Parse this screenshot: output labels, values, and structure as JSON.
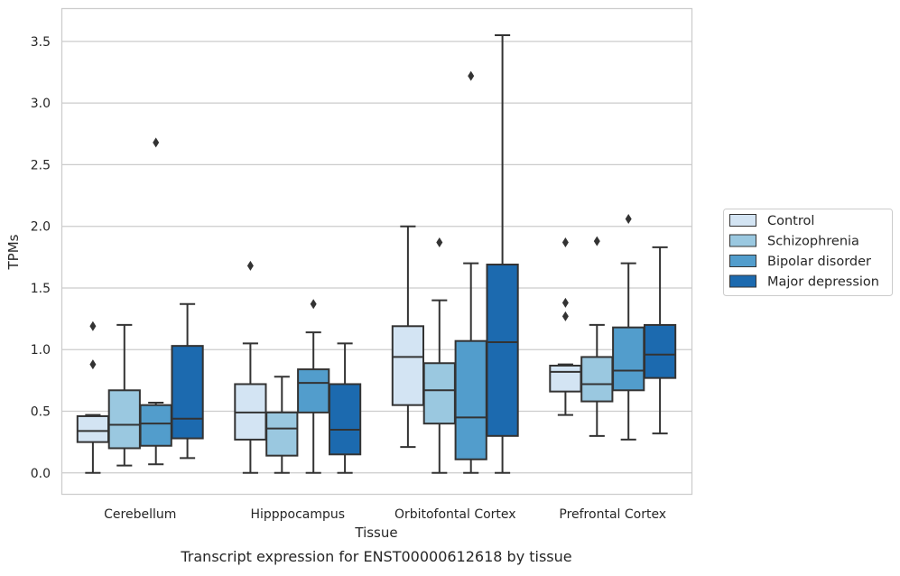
{
  "chart_data": {
    "type": "box",
    "title": "",
    "caption": "Transcript expression for ENST00000612618 by tissue",
    "xlabel": "Tissue",
    "ylabel": "TPMs",
    "ylim": [
      -0.17,
      3.77
    ],
    "yticks": [
      "0.0",
      "0.5",
      "1.0",
      "1.5",
      "2.0",
      "2.5",
      "3.0",
      "3.5"
    ],
    "grid": "horizontal",
    "legend_position": "right",
    "categories": [
      "Cerebellum",
      "Hipppocampus",
      "Orbitofontal Cortex",
      "Prefrontal Cortex"
    ],
    "series": [
      {
        "name": "Control",
        "color": "#d3e4f3",
        "boxes": [
          {
            "whisker_low": 0.0,
            "q1": 0.25,
            "median": 0.34,
            "q3": 0.46,
            "whisker_high": 0.47,
            "outliers": [
              0.88,
              1.19
            ]
          },
          {
            "whisker_low": 0.0,
            "q1": 0.27,
            "median": 0.49,
            "q3": 0.72,
            "whisker_high": 1.05,
            "outliers": [
              1.68
            ]
          },
          {
            "whisker_low": 0.21,
            "q1": 0.55,
            "median": 0.94,
            "q3": 1.19,
            "whisker_high": 2.0,
            "outliers": []
          },
          {
            "whisker_low": 0.47,
            "q1": 0.66,
            "median": 0.82,
            "q3": 0.87,
            "whisker_high": 0.88,
            "outliers": [
              1.27,
              1.38,
              1.87
            ]
          }
        ]
      },
      {
        "name": "Schizophrenia",
        "color": "#9ac8e0",
        "boxes": [
          {
            "whisker_low": 0.06,
            "q1": 0.2,
            "median": 0.39,
            "q3": 0.67,
            "whisker_high": 1.2,
            "outliers": []
          },
          {
            "whisker_low": 0.0,
            "q1": 0.14,
            "median": 0.36,
            "q3": 0.49,
            "whisker_high": 0.78,
            "outliers": []
          },
          {
            "whisker_low": 0.0,
            "q1": 0.4,
            "median": 0.67,
            "q3": 0.89,
            "whisker_high": 1.4,
            "outliers": [
              1.87
            ]
          },
          {
            "whisker_low": 0.3,
            "q1": 0.58,
            "median": 0.72,
            "q3": 0.94,
            "whisker_high": 1.2,
            "outliers": [
              1.88
            ]
          }
        ]
      },
      {
        "name": "Bipolar disorder",
        "color": "#529dcc",
        "boxes": [
          {
            "whisker_low": 0.07,
            "q1": 0.22,
            "median": 0.4,
            "q3": 0.55,
            "whisker_high": 0.57,
            "outliers": [
              2.68
            ]
          },
          {
            "whisker_low": 0.0,
            "q1": 0.49,
            "median": 0.73,
            "q3": 0.84,
            "whisker_high": 1.14,
            "outliers": [
              1.37
            ]
          },
          {
            "whisker_low": 0.0,
            "q1": 0.11,
            "median": 0.45,
            "q3": 1.07,
            "whisker_high": 1.7,
            "outliers": [
              3.22
            ]
          },
          {
            "whisker_low": 0.27,
            "q1": 0.67,
            "median": 0.83,
            "q3": 1.18,
            "whisker_high": 1.7,
            "outliers": [
              2.06
            ]
          }
        ]
      },
      {
        "name": "Major depression",
        "color": "#1c6aaf",
        "boxes": [
          {
            "whisker_low": 0.12,
            "q1": 0.28,
            "median": 0.44,
            "q3": 1.03,
            "whisker_high": 1.37,
            "outliers": []
          },
          {
            "whisker_low": 0.0,
            "q1": 0.15,
            "median": 0.35,
            "q3": 0.72,
            "whisker_high": 1.05,
            "outliers": []
          },
          {
            "whisker_low": 0.0,
            "q1": 0.3,
            "median": 1.06,
            "q3": 1.69,
            "whisker_high": 3.55,
            "outliers": []
          },
          {
            "whisker_low": 0.32,
            "q1": 0.77,
            "median": 0.96,
            "q3": 1.2,
            "whisker_high": 1.83,
            "outliers": []
          }
        ]
      }
    ]
  }
}
